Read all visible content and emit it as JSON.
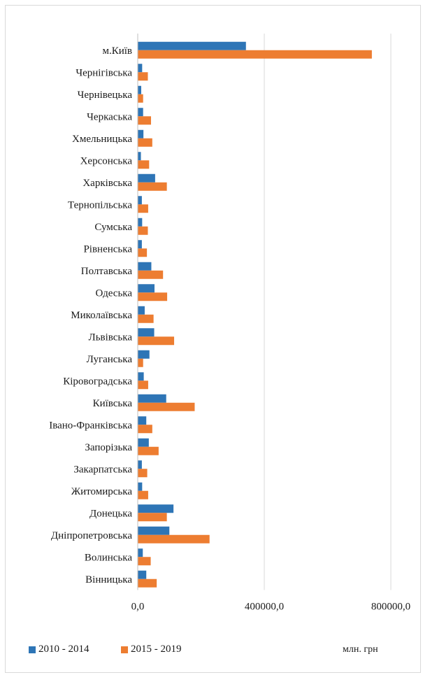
{
  "chart_data": {
    "type": "bar",
    "orientation": "horizontal",
    "categories": [
      "м.Київ",
      "Чернігівська",
      "Чернівецька",
      "Черкаська",
      "Хмельницька",
      "Херсонська",
      "Харківська",
      "Тернопільська",
      "Сумська",
      "Рівненська",
      "Полтавська",
      "Одеська",
      "Миколаївська",
      "Львівська",
      "Луганська",
      "Кіровоградська",
      "Київська",
      "Івано-Франківська",
      "Запорізька",
      "Закарпатська",
      "Житомирська",
      "Донецька",
      "Дніпропетровська",
      "Волинська",
      "Вінницька"
    ],
    "series": [
      {
        "name": "2010 - 2014",
        "color": "#2e75b6",
        "values": [
          342000,
          14000,
          11000,
          17000,
          18000,
          10000,
          55000,
          13000,
          14000,
          13000,
          43000,
          53000,
          22000,
          52000,
          37000,
          19000,
          90000,
          27000,
          35000,
          13000,
          14000,
          113000,
          100000,
          16000,
          27000
        ]
      },
      {
        "name": "2015 - 2019",
        "color": "#ed7d31",
        "values": [
          740000,
          32000,
          17000,
          42000,
          46000,
          36000,
          92000,
          33000,
          32000,
          29000,
          80000,
          93000,
          50000,
          115000,
          17000,
          33000,
          180000,
          46000,
          66000,
          30000,
          33000,
          92000,
          227000,
          41000,
          60000
        ]
      }
    ],
    "xlim": [
      0,
      800000
    ],
    "ticks": [
      "0,0",
      "400000,0",
      "800000,0"
    ],
    "grid": true,
    "legend_position": "bottom",
    "unit_label": "млн. грн"
  }
}
